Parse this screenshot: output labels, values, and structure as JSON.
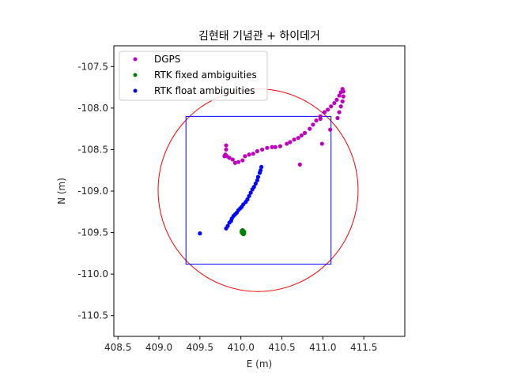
{
  "chart_data": {
    "type": "scatter",
    "title": "김현태 기념관 + 하이데거",
    "xlabel": "E (m)",
    "ylabel": "N (m)",
    "xlim": [
      408.45,
      412.0
    ],
    "ylim": [
      -110.75,
      -107.25
    ],
    "x_ticks": [
      "408.5",
      "409.0",
      "409.5",
      "410.0",
      "410.5",
      "411.0",
      "411.5"
    ],
    "y_ticks": [
      "-107.5",
      "-108.0",
      "-108.5",
      "-109.0",
      "-109.5",
      "-110.0",
      "-110.5"
    ],
    "grid": false,
    "legend_position": "top-left",
    "series": [
      {
        "name": "DGPS",
        "color": "#bf00bf",
        "points": [
          [
            409.82,
            -108.45
          ],
          [
            409.82,
            -108.5
          ],
          [
            409.81,
            -108.56
          ],
          [
            409.8,
            -108.58
          ],
          [
            409.83,
            -108.58
          ],
          [
            409.86,
            -108.6
          ],
          [
            409.9,
            -108.62
          ],
          [
            409.93,
            -108.66
          ],
          [
            409.97,
            -108.65
          ],
          [
            410.02,
            -108.63
          ],
          [
            410.05,
            -108.58
          ],
          [
            410.1,
            -108.56
          ],
          [
            410.15,
            -108.55
          ],
          [
            410.2,
            -108.52
          ],
          [
            410.26,
            -108.5
          ],
          [
            410.32,
            -108.48
          ],
          [
            410.38,
            -108.47
          ],
          [
            410.42,
            -108.47
          ],
          [
            410.48,
            -108.46
          ],
          [
            410.56,
            -108.43
          ],
          [
            410.6,
            -108.41
          ],
          [
            410.65,
            -108.38
          ],
          [
            410.7,
            -108.36
          ],
          [
            410.74,
            -108.33
          ],
          [
            410.78,
            -108.3
          ],
          [
            410.84,
            -108.25
          ],
          [
            410.88,
            -108.2
          ],
          [
            410.92,
            -108.15
          ],
          [
            410.97,
            -108.1
          ],
          [
            411.02,
            -108.05
          ],
          [
            411.06,
            -108.02
          ],
          [
            411.1,
            -107.98
          ],
          [
            411.14,
            -107.94
          ],
          [
            411.17,
            -107.9
          ],
          [
            411.2,
            -107.85
          ],
          [
            411.22,
            -107.81
          ],
          [
            411.24,
            -107.77
          ],
          [
            411.25,
            -107.8
          ],
          [
            411.25,
            -107.86
          ],
          [
            411.24,
            -107.92
          ],
          [
            411.22,
            -107.98
          ],
          [
            411.2,
            -108.05
          ],
          [
            411.18,
            -108.12
          ],
          [
            411.09,
            -108.26
          ],
          [
            410.97,
            -108.13
          ],
          [
            410.99,
            -108.43
          ],
          [
            410.72,
            -108.68
          ]
        ]
      },
      {
        "name": "RTK fixed ambiguities",
        "color": "#008000",
        "points": [
          [
            410.01,
            -109.48
          ],
          [
            410.02,
            -109.49
          ],
          [
            410.03,
            -109.5
          ],
          [
            410.04,
            -109.51
          ],
          [
            410.02,
            -109.51
          ],
          [
            410.03,
            -109.48
          ],
          [
            410.04,
            -109.49
          ],
          [
            410.01,
            -109.5
          ],
          [
            410.03,
            -109.52
          ],
          [
            410.02,
            -109.47
          ]
        ]
      },
      {
        "name": "RTK float ambiguities",
        "color": "#0000ff",
        "points": [
          [
            409.5,
            -109.51
          ],
          [
            409.82,
            -109.45
          ],
          [
            409.84,
            -109.42
          ],
          [
            409.86,
            -109.38
          ],
          [
            409.88,
            -109.36
          ],
          [
            409.89,
            -109.33
          ],
          [
            409.91,
            -109.3
          ],
          [
            409.93,
            -109.28
          ],
          [
            409.95,
            -109.26
          ],
          [
            409.97,
            -109.23
          ],
          [
            409.99,
            -109.21
          ],
          [
            410.01,
            -109.19
          ],
          [
            410.03,
            -109.16
          ],
          [
            410.06,
            -109.13
          ],
          [
            410.08,
            -109.1
          ],
          [
            410.1,
            -109.06
          ],
          [
            410.12,
            -109.02
          ],
          [
            410.14,
            -108.98
          ],
          [
            410.16,
            -108.95
          ],
          [
            410.18,
            -108.91
          ],
          [
            410.2,
            -108.87
          ],
          [
            410.21,
            -108.83
          ],
          [
            410.23,
            -108.78
          ],
          [
            410.24,
            -108.75
          ],
          [
            410.25,
            -108.71
          ]
        ]
      }
    ],
    "circle": {
      "color": "#ff0000",
      "center": [
        410.21,
        -108.99
      ],
      "radius": 1.22
    },
    "square": {
      "color": "#0000ff",
      "x_range": [
        409.33,
        411.1
      ],
      "y_range": [
        -109.88,
        -108.1
      ]
    }
  }
}
